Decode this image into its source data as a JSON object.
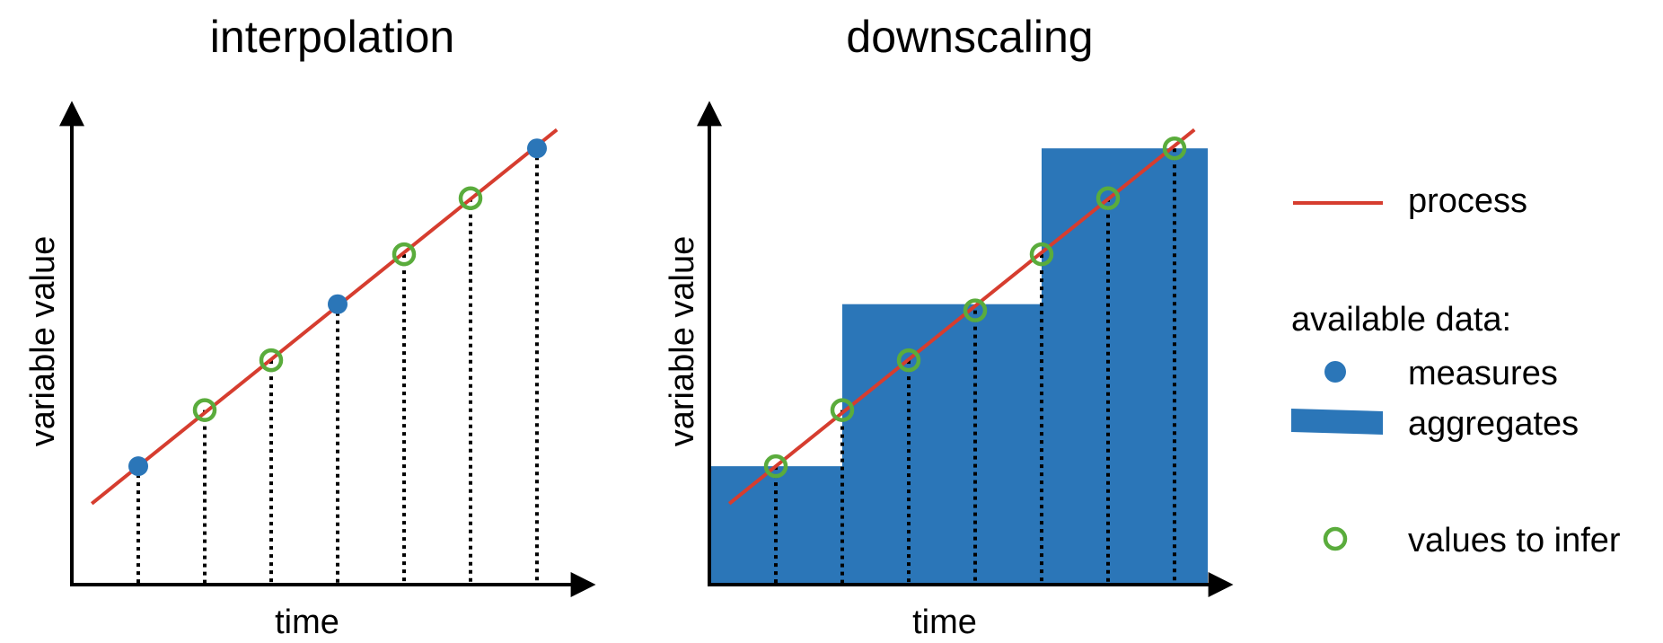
{
  "colors": {
    "process": "#d63d2f",
    "measure": "#2b76b8",
    "aggregate": "#2b76b8",
    "infer": "#5aac3c",
    "axis": "#000000"
  },
  "chart_data": [
    {
      "type": "scatter",
      "title": "interpolation",
      "xlabel": "time",
      "ylabel": "variable value",
      "process_line": {
        "x": [
          0.3,
          7.3
        ],
        "y": [
          1.3,
          7.3
        ]
      },
      "measures": [
        {
          "x": 1,
          "y": 1.9
        },
        {
          "x": 4,
          "y": 4.5
        },
        {
          "x": 7,
          "y": 7.0
        }
      ],
      "values_to_infer": [
        {
          "x": 2,
          "y": 2.8
        },
        {
          "x": 3,
          "y": 3.6
        },
        {
          "x": 5,
          "y": 5.3
        },
        {
          "x": 6,
          "y": 6.2
        }
      ],
      "xlim": [
        0,
        8
      ],
      "ylim": [
        0,
        8
      ]
    },
    {
      "type": "bar",
      "title": "downscaling",
      "xlabel": "time",
      "ylabel": "variable value",
      "process_line": {
        "x": [
          0.3,
          7.3
        ],
        "y": [
          1.3,
          7.3
        ]
      },
      "aggregates": [
        {
          "x_start": 0.0,
          "x_end": 2.0,
          "value": 1.9
        },
        {
          "x_start": 2.0,
          "x_end": 5.0,
          "value": 4.5
        },
        {
          "x_start": 5.0,
          "x_end": 7.5,
          "value": 7.0
        }
      ],
      "values_to_infer": [
        {
          "x": 1,
          "y": 1.9
        },
        {
          "x": 2,
          "y": 2.8
        },
        {
          "x": 3,
          "y": 3.6
        },
        {
          "x": 4,
          "y": 4.4
        },
        {
          "x": 5,
          "y": 5.3
        },
        {
          "x": 6,
          "y": 6.2
        },
        {
          "x": 7,
          "y": 7.0
        }
      ],
      "xlim": [
        0,
        8
      ],
      "ylim": [
        0,
        8
      ]
    }
  ],
  "legend": {
    "process": "process",
    "available_data": "available data:",
    "measures": "measures",
    "aggregates": "aggregates",
    "values_to_infer": "values to infer"
  }
}
